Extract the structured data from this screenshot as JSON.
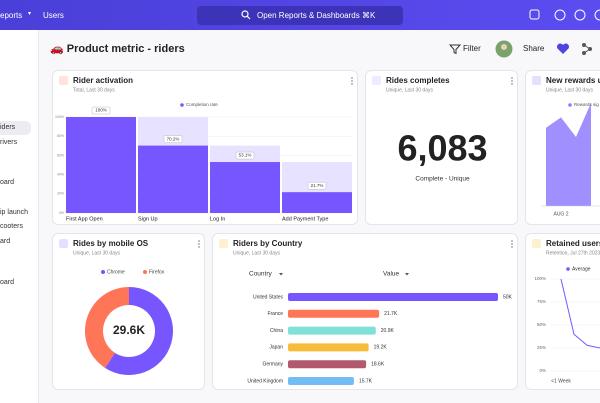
{
  "nav": {
    "menu": "eports",
    "users": "Users",
    "search": "Open Reports & Dashboards ⌘K"
  },
  "sidebar": [
    "iders",
    "rivers",
    "oard",
    "ip launch",
    "cooters",
    "ard",
    "oard"
  ],
  "header": {
    "title": "🚗 Product metric - riders",
    "filter": "Filter",
    "share": "Share"
  },
  "chart_data": [
    {
      "type": "bar",
      "title": "Rider activation",
      "subtitle": "Total, Last 30 days",
      "legend": "Completion rate",
      "categories": [
        "First App Open",
        "Sign Up",
        "Log In",
        "Add Payment Type"
      ],
      "values": [
        100,
        70.2,
        53.1,
        21.7
      ],
      "value_labels": [
        "100%",
        "70.2%",
        "53.1%",
        "21.7%"
      ],
      "color": "#7856ff",
      "ylim": [
        0,
        100
      ],
      "yticks": [
        {
          "value": 0,
          "label": "0%"
        },
        {
          "value": 20,
          "label": "20%"
        },
        {
          "value": 40,
          "label": "40%"
        },
        {
          "value": 60,
          "label": "60%"
        },
        {
          "value": 80,
          "label": "80%"
        },
        {
          "value": 100,
          "label": "100%"
        }
      ],
      "grid": true
    },
    {
      "type": "metric",
      "title": "Rides completes",
      "subtitle": "Unique, Last 30 days",
      "values": [
        6083
      ],
      "value_labels": [
        "6,083"
      ],
      "caption": "Complete - Unique"
    },
    {
      "type": "area",
      "title": "New rewards users",
      "subtitle": "Unique, Last 30 days",
      "categories": [
        null,
        "AUG 2",
        null,
        null
      ],
      "ylim": [
        0,
        100
      ],
      "series": [
        {
          "name": "Rewards sig",
          "color": "#8f7bff",
          "values": [
            76,
            86,
            67,
            100
          ]
        }
      ]
    },
    {
      "type": "pie",
      "title": "Rides by mobile OS",
      "subtitle": "Unique, Last 30 days",
      "categories": [
        "Chrome",
        "Firefox"
      ],
      "values": [
        17500,
        12100
      ],
      "colors": [
        "#7856ff",
        "#ff7557"
      ],
      "center_label": "29.6K"
    },
    {
      "type": "hbar",
      "title": "Riders by Country",
      "subtitle": "Unique, Last 30 days",
      "columns": [
        "Country",
        "Value"
      ],
      "categories": [
        "United States",
        "France",
        "China",
        "Japan",
        "Germany",
        "United Kingdom"
      ],
      "values": [
        50000,
        21700,
        20900,
        19200,
        18600,
        15700
      ],
      "value_labels": [
        "50K",
        "21.7K",
        "20.9K",
        "19.2K",
        "18.6K",
        "15.7K"
      ],
      "colors": [
        "#7856ff",
        "#ff7557",
        "#80e1d9",
        "#f8bc3b",
        "#b2596e",
        "#72bef4"
      ],
      "xlim": [
        0,
        50000
      ]
    },
    {
      "type": "line",
      "title": "Retained users",
      "subtitle": "Retention, Jul 27th 2023",
      "categories": [
        "<1 Week",
        null,
        null,
        null
      ],
      "ylim": [
        0,
        100
      ],
      "yticks": [
        {
          "value": 0,
          "label": "0%"
        },
        {
          "value": 25,
          "label": "25%"
        },
        {
          "value": 50,
          "label": "50%"
        },
        {
          "value": 75,
          "label": "75%"
        },
        {
          "value": 100,
          "label": "100%"
        }
      ],
      "series": [
        {
          "name": "Average",
          "color": "#7856ff",
          "values": [
            100,
            40,
            28,
            25
          ]
        }
      ]
    }
  ]
}
